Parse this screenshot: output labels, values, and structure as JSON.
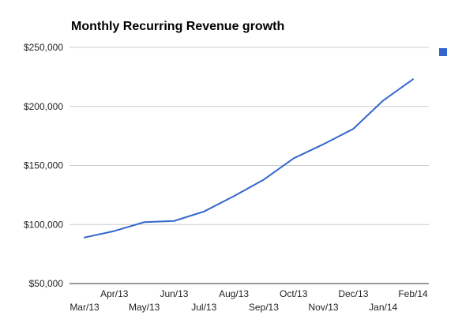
{
  "chart_data": {
    "type": "line",
    "title": "Monthly Recurring Revenue growth",
    "xlabel": "",
    "ylabel": "",
    "categories": [
      "Mar/13",
      "Apr/13",
      "May/13",
      "Jun/13",
      "Jul/13",
      "Aug/13",
      "Sep/13",
      "Oct/13",
      "Nov/13",
      "Dec/13",
      "Jan/14",
      "Feb/14"
    ],
    "series": [
      {
        "values": [
          89000,
          94500,
          102000,
          103000,
          111000,
          124000,
          138000,
          156000,
          168000,
          181000,
          205000,
          223000
        ],
        "color": "#3366cc"
      }
    ],
    "ylim": [
      50000,
      250000
    ],
    "yticks": [
      50000,
      100000,
      150000,
      200000,
      250000
    ],
    "ytick_labels": [
      "$50,000",
      "$100,000",
      "$150,000",
      "$200,000",
      "$250,000"
    ],
    "grid": true,
    "legend": "right"
  }
}
